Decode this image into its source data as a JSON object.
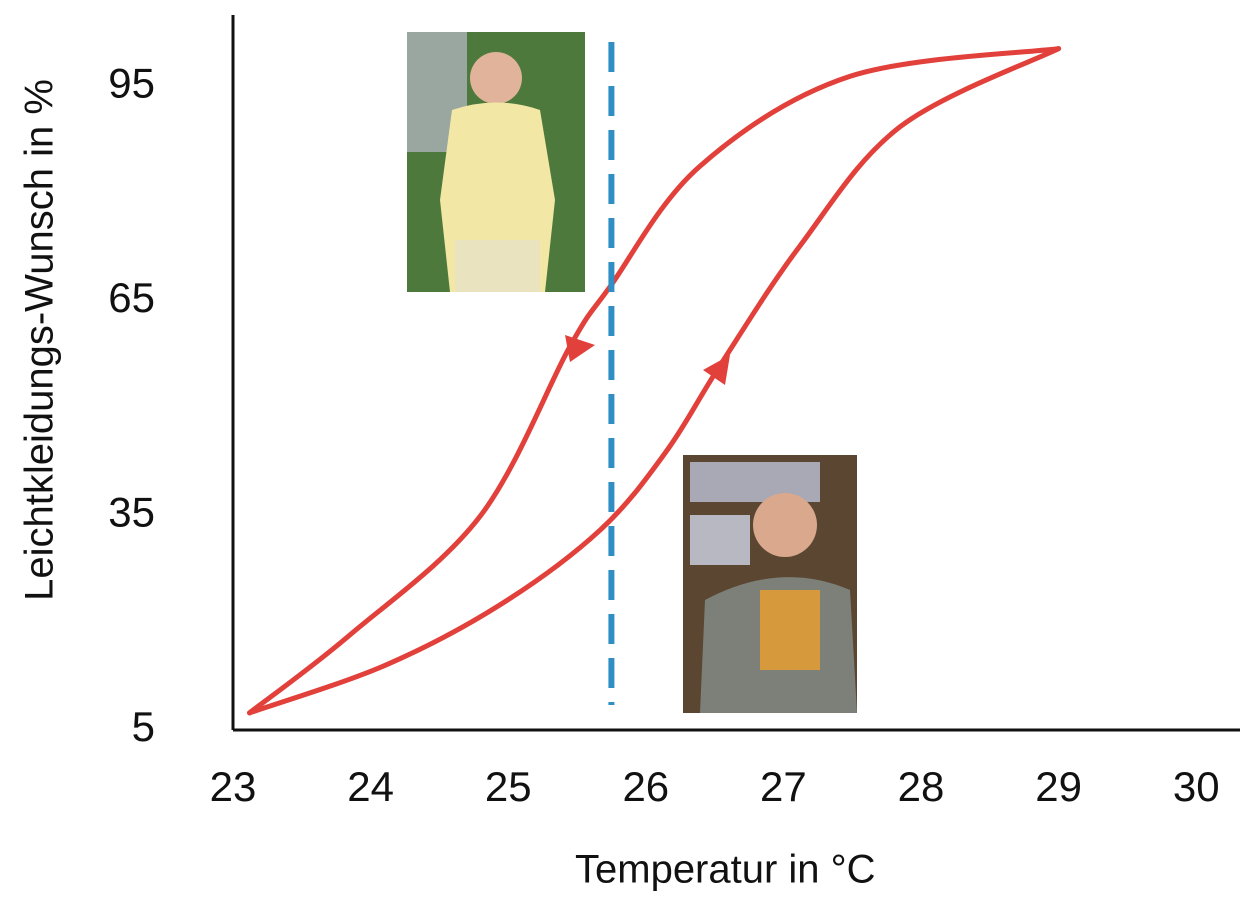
{
  "chart_data": {
    "type": "line",
    "x_label": "Temperatur in °C",
    "y_label": "Leichtkleidungs-Wunsch in %",
    "xlim": [
      23,
      30.3
    ],
    "ylim": [
      5,
      105
    ],
    "xticks": [
      23,
      24,
      25,
      26,
      27,
      28,
      29,
      30
    ],
    "yticks": [
      5,
      35,
      65,
      95
    ],
    "series": [
      {
        "color": "#e2403b",
        "x": [
          23.12,
          24.1,
          24.94,
          25.67,
          26.15,
          26.54,
          27.12,
          27.85,
          29.0
        ],
        "values": [
          7.4,
          14,
          22.5,
          33,
          44,
          56,
          72.7,
          89.4,
          100.3
        ]
      },
      {
        "color": "#e2403b",
        "x": [
          29.0,
          27.48,
          26.39,
          25.74,
          25.45,
          24.8,
          23.85,
          23.12
        ],
        "values": [
          100.3,
          96.4,
          83.8,
          67,
          58.7,
          35,
          18.3,
          7.4
        ]
      }
    ],
    "reference_line": {
      "x": 25.75,
      "color": "#2f8fc4"
    }
  }
}
